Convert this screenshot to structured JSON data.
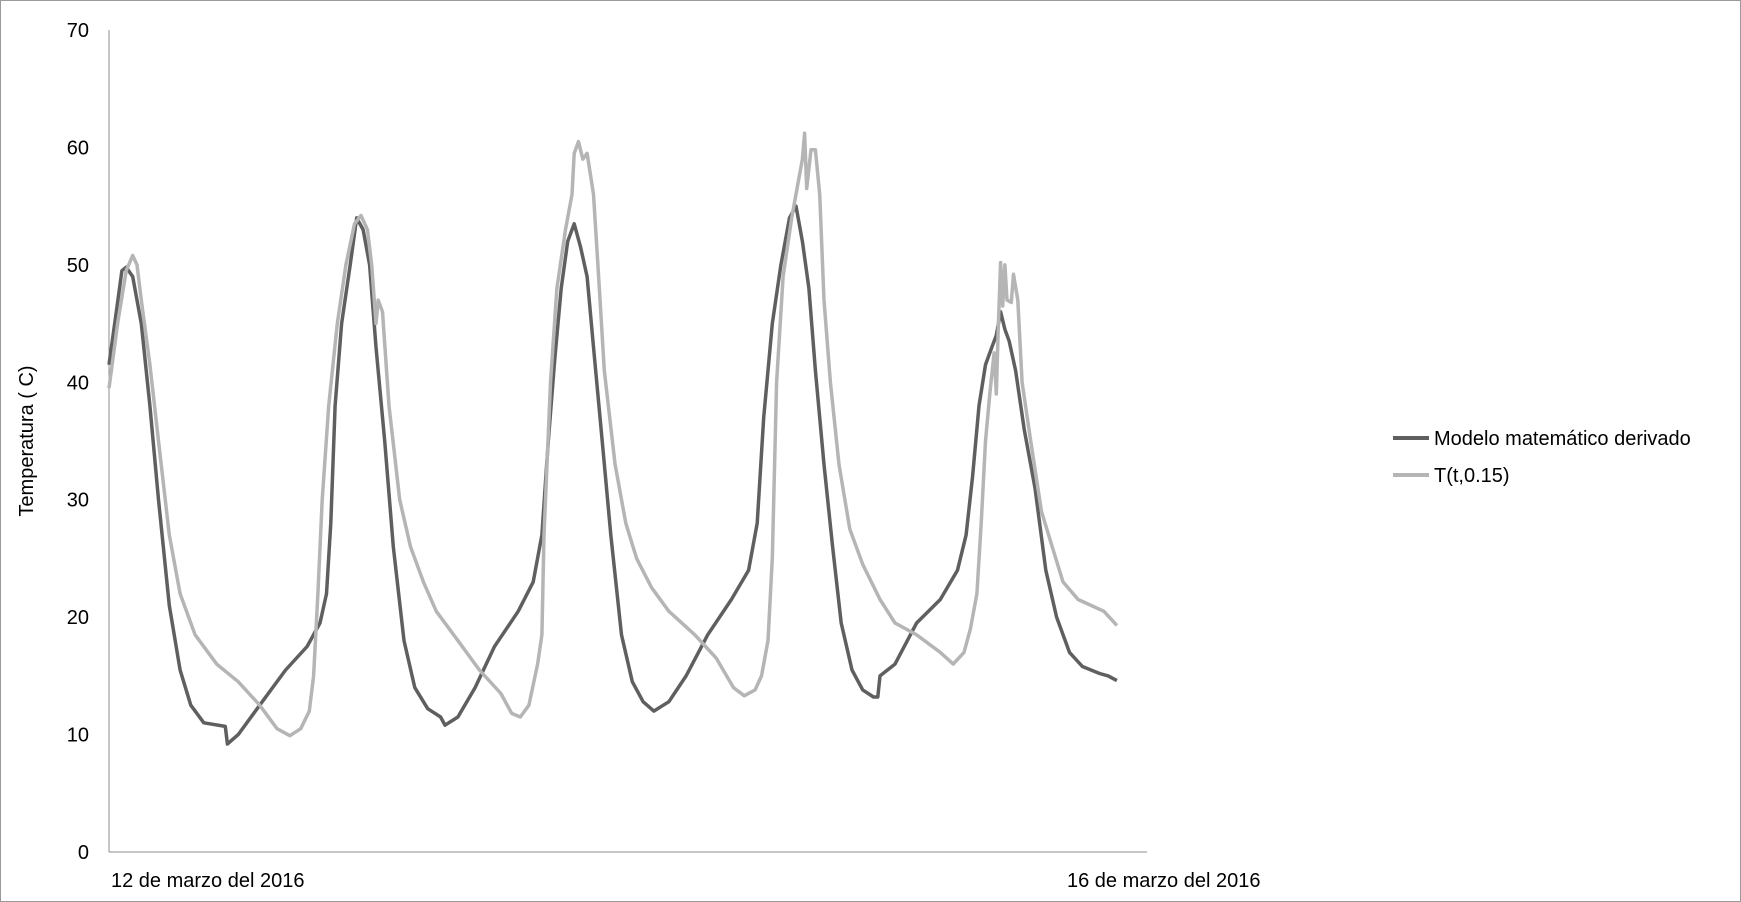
{
  "chart_data": {
    "type": "line",
    "title": "",
    "xlabel": "",
    "ylabel": "Temperatura ( C)",
    "x_tick_labels": [
      "12 de marzo del 2016",
      "16 de marzo del 2016"
    ],
    "x_unit": "days since 12 de marzo del 2016 00:00",
    "xlim": [
      0,
      4.82
    ],
    "ylim": [
      0,
      70
    ],
    "yticks": [
      0,
      10,
      20,
      30,
      40,
      50,
      60,
      70
    ],
    "grid": false,
    "legend_position": "right",
    "series": [
      {
        "name": "Modelo matemático derivado",
        "color": "#5f5f5f",
        "points": [
          [
            0.0,
            41.5
          ],
          [
            0.03,
            45.5
          ],
          [
            0.06,
            49.5
          ],
          [
            0.08,
            49.8
          ],
          [
            0.11,
            49.0
          ],
          [
            0.15,
            45.0
          ],
          [
            0.19,
            38.0
          ],
          [
            0.23,
            30.0
          ],
          [
            0.28,
            21.0
          ],
          [
            0.33,
            15.5
          ],
          [
            0.38,
            12.5
          ],
          [
            0.44,
            11.0
          ],
          [
            0.54,
            10.7
          ],
          [
            0.55,
            9.2
          ],
          [
            0.6,
            10.0
          ],
          [
            0.7,
            12.5
          ],
          [
            0.82,
            15.5
          ],
          [
            0.92,
            17.5
          ],
          [
            0.98,
            19.5
          ],
          [
            1.01,
            22.0
          ],
          [
            1.03,
            28.0
          ],
          [
            1.05,
            38.0
          ],
          [
            1.08,
            45.0
          ],
          [
            1.12,
            50.0
          ],
          [
            1.15,
            54.0
          ],
          [
            1.18,
            53.0
          ],
          [
            1.21,
            50.0
          ],
          [
            1.24,
            43.0
          ],
          [
            1.28,
            35.0
          ],
          [
            1.32,
            26.0
          ],
          [
            1.37,
            18.0
          ],
          [
            1.42,
            14.0
          ],
          [
            1.48,
            12.2
          ],
          [
            1.54,
            11.5
          ],
          [
            1.56,
            10.8
          ],
          [
            1.62,
            11.5
          ],
          [
            1.7,
            14.0
          ],
          [
            1.79,
            17.5
          ],
          [
            1.9,
            20.5
          ],
          [
            1.97,
            23.0
          ],
          [
            2.01,
            27.0
          ],
          [
            2.04,
            35.0
          ],
          [
            2.07,
            42.0
          ],
          [
            2.1,
            48.0
          ],
          [
            2.13,
            52.0
          ],
          [
            2.16,
            53.5
          ],
          [
            2.19,
            51.5
          ],
          [
            2.22,
            49.0
          ],
          [
            2.25,
            43.0
          ],
          [
            2.29,
            35.0
          ],
          [
            2.33,
            27.0
          ],
          [
            2.38,
            18.5
          ],
          [
            2.43,
            14.5
          ],
          [
            2.48,
            12.8
          ],
          [
            2.53,
            12.0
          ],
          [
            2.6,
            12.8
          ],
          [
            2.68,
            15.0
          ],
          [
            2.78,
            18.5
          ],
          [
            2.89,
            21.5
          ],
          [
            2.97,
            24.0
          ],
          [
            3.01,
            28.0
          ],
          [
            3.04,
            37.0
          ],
          [
            3.08,
            45.0
          ],
          [
            3.12,
            50.0
          ],
          [
            3.16,
            54.0
          ],
          [
            3.19,
            55.0
          ],
          [
            3.22,
            52.0
          ],
          [
            3.25,
            48.0
          ],
          [
            3.28,
            41.0
          ],
          [
            3.32,
            33.0
          ],
          [
            3.36,
            26.0
          ],
          [
            3.4,
            19.5
          ],
          [
            3.45,
            15.5
          ],
          [
            3.5,
            13.8
          ],
          [
            3.55,
            13.2
          ],
          [
            3.57,
            13.2
          ],
          [
            3.58,
            15.0
          ],
          [
            3.65,
            16.0
          ],
          [
            3.75,
            19.5
          ],
          [
            3.86,
            21.5
          ],
          [
            3.94,
            24.0
          ],
          [
            3.98,
            27.0
          ],
          [
            4.01,
            32.0
          ],
          [
            4.04,
            38.0
          ],
          [
            4.07,
            41.5
          ],
          [
            4.1,
            43.0
          ],
          [
            4.12,
            44.0
          ],
          [
            4.14,
            46.0
          ],
          [
            4.16,
            44.5
          ],
          [
            4.18,
            43.5
          ],
          [
            4.21,
            41.0
          ],
          [
            4.25,
            36.0
          ],
          [
            4.3,
            31.0
          ],
          [
            4.35,
            24.0
          ],
          [
            4.4,
            20.0
          ],
          [
            4.46,
            17.0
          ],
          [
            4.52,
            15.8
          ],
          [
            4.6,
            15.2
          ],
          [
            4.64,
            15.0
          ],
          [
            4.68,
            14.6
          ]
        ]
      },
      {
        "name": "T(t,0.15)",
        "color": "#b5b5b5",
        "points": [
          [
            0.0,
            39.5
          ],
          [
            0.04,
            45.0
          ],
          [
            0.08,
            49.5
          ],
          [
            0.11,
            50.8
          ],
          [
            0.13,
            50.0
          ],
          [
            0.15,
            47.0
          ],
          [
            0.19,
            41.5
          ],
          [
            0.23,
            35.0
          ],
          [
            0.28,
            27.0
          ],
          [
            0.33,
            22.0
          ],
          [
            0.4,
            18.5
          ],
          [
            0.5,
            16.0
          ],
          [
            0.6,
            14.5
          ],
          [
            0.7,
            12.5
          ],
          [
            0.78,
            10.5
          ],
          [
            0.84,
            9.9
          ],
          [
            0.89,
            10.5
          ],
          [
            0.93,
            12.0
          ],
          [
            0.95,
            15.0
          ],
          [
            0.97,
            22.0
          ],
          [
            0.99,
            30.0
          ],
          [
            1.02,
            38.0
          ],
          [
            1.06,
            45.0
          ],
          [
            1.1,
            50.0
          ],
          [
            1.14,
            53.5
          ],
          [
            1.17,
            54.2
          ],
          [
            1.2,
            53.0
          ],
          [
            1.22,
            50.0
          ],
          [
            1.24,
            45.0
          ],
          [
            1.25,
            47.0
          ],
          [
            1.27,
            46.0
          ],
          [
            1.3,
            38.0
          ],
          [
            1.35,
            30.0
          ],
          [
            1.4,
            26.0
          ],
          [
            1.46,
            23.0
          ],
          [
            1.52,
            20.5
          ],
          [
            1.62,
            18.0
          ],
          [
            1.72,
            15.5
          ],
          [
            1.82,
            13.5
          ],
          [
            1.87,
            11.8
          ],
          [
            1.91,
            11.5
          ],
          [
            1.95,
            12.5
          ],
          [
            1.99,
            16.0
          ],
          [
            2.01,
            18.5
          ],
          [
            2.02,
            27.0
          ],
          [
            2.05,
            40.0
          ],
          [
            2.08,
            48.0
          ],
          [
            2.12,
            53.0
          ],
          [
            2.15,
            56.0
          ],
          [
            2.16,
            59.5
          ],
          [
            2.18,
            60.5
          ],
          [
            2.2,
            59.0
          ],
          [
            2.22,
            59.5
          ],
          [
            2.25,
            56.0
          ],
          [
            2.27,
            50.0
          ],
          [
            2.3,
            41.0
          ],
          [
            2.35,
            33.0
          ],
          [
            2.4,
            28.0
          ],
          [
            2.45,
            25.0
          ],
          [
            2.52,
            22.5
          ],
          [
            2.6,
            20.5
          ],
          [
            2.72,
            18.5
          ],
          [
            2.82,
            16.5
          ],
          [
            2.9,
            14.0
          ],
          [
            2.95,
            13.3
          ],
          [
            3.0,
            13.8
          ],
          [
            3.03,
            15.0
          ],
          [
            3.06,
            18.0
          ],
          [
            3.08,
            25.0
          ],
          [
            3.1,
            40.0
          ],
          [
            3.13,
            49.0
          ],
          [
            3.17,
            54.0
          ],
          [
            3.2,
            57.0
          ],
          [
            3.22,
            59.0
          ],
          [
            3.23,
            61.2
          ],
          [
            3.24,
            56.5
          ],
          [
            3.26,
            59.8
          ],
          [
            3.28,
            59.8
          ],
          [
            3.3,
            56.0
          ],
          [
            3.32,
            47.0
          ],
          [
            3.35,
            40.0
          ],
          [
            3.39,
            33.0
          ],
          [
            3.44,
            27.5
          ],
          [
            3.5,
            24.5
          ],
          [
            3.58,
            21.5
          ],
          [
            3.65,
            19.5
          ],
          [
            3.75,
            18.5
          ],
          [
            3.86,
            17.0
          ],
          [
            3.92,
            16.0
          ],
          [
            3.97,
            17.0
          ],
          [
            4.0,
            19.0
          ],
          [
            4.03,
            22.0
          ],
          [
            4.05,
            28.0
          ],
          [
            4.07,
            35.0
          ],
          [
            4.09,
            39.0
          ],
          [
            4.11,
            42.5
          ],
          [
            4.12,
            39.0
          ],
          [
            4.13,
            45.0
          ],
          [
            4.14,
            50.2
          ],
          [
            4.15,
            46.5
          ],
          [
            4.16,
            50.0
          ],
          [
            4.17,
            47.0
          ],
          [
            4.19,
            46.8
          ],
          [
            4.2,
            49.2
          ],
          [
            4.22,
            47.0
          ],
          [
            4.24,
            40.0
          ],
          [
            4.28,
            35.0
          ],
          [
            4.33,
            29.0
          ],
          [
            4.38,
            26.0
          ],
          [
            4.43,
            23.0
          ],
          [
            4.5,
            21.5
          ],
          [
            4.56,
            21.0
          ],
          [
            4.62,
            20.5
          ],
          [
            4.68,
            19.3
          ]
        ]
      }
    ]
  }
}
